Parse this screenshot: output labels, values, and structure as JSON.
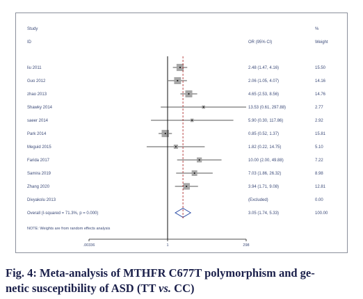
{
  "chart_data": {
    "type": "forest",
    "columns": {
      "study_header_line1": "Study",
      "study_header_line2": "ID",
      "estimate_header": "OR (95% CI)",
      "weight_header_line1": "%",
      "weight_header_line2": "Weight"
    },
    "studies": [
      {
        "id": "liu 2011",
        "or": 2.48,
        "lo": 1.47,
        "hi": 4.16,
        "ci_text": "2.48 (1.47, 4.16)",
        "weight": 15.5,
        "weight_text": "15.50"
      },
      {
        "id": "Guo 2012",
        "or": 2.06,
        "lo": 1.05,
        "hi": 4.07,
        "ci_text": "2.06 (1.05, 4.07)",
        "weight": 14.16,
        "weight_text": "14.16"
      },
      {
        "id": "zhao 2013",
        "or": 4.65,
        "lo": 2.53,
        "hi": 8.56,
        "ci_text": "4.65 (2.53, 8.56)",
        "weight": 14.76,
        "weight_text": "14.76"
      },
      {
        "id": "Shawky 2014",
        "or": 13.53,
        "lo": 0.61,
        "hi": 297.88,
        "ci_text": "13.53 (0.61, 297.88)",
        "weight": 2.77,
        "weight_text": "2.77"
      },
      {
        "id": "saeer 2014",
        "or": 5.9,
        "lo": 0.3,
        "hi": 117.86,
        "ci_text": "5.90 (0.30, 117.86)",
        "weight": 2.92,
        "weight_text": "2.92"
      },
      {
        "id": "Park 2014",
        "or": 0.85,
        "lo": 0.52,
        "hi": 1.37,
        "ci_text": "0.85 (0.52, 1.37)",
        "weight": 15.81,
        "weight_text": "15.81"
      },
      {
        "id": "Meguid 2015",
        "or": 1.82,
        "lo": 0.22,
        "hi": 14.75,
        "ci_text": "1.82 (0.22, 14.75)",
        "weight": 5.1,
        "weight_text": "5.10"
      },
      {
        "id": "Farida 2017",
        "or": 10.0,
        "lo": 2.0,
        "hi": 49.88,
        "ci_text": "10.00 (2.00, 49.88)",
        "weight": 7.22,
        "weight_text": "7.22"
      },
      {
        "id": "Samira 2019",
        "or": 7.03,
        "lo": 1.86,
        "hi": 26.32,
        "ci_text": "7.03 (1.86, 26.32)",
        "weight": 8.98,
        "weight_text": "8.98"
      },
      {
        "id": "Zhang 2020",
        "or": 3.94,
        "lo": 1.71,
        "hi": 9.08,
        "ci_text": "3.94 (1.71, 9.08)",
        "weight": 12.81,
        "weight_text": "12.81"
      },
      {
        "id": "Divyakolu 2013",
        "or": null,
        "lo": null,
        "hi": null,
        "ci_text": "(Excluded)",
        "weight": 0.0,
        "weight_text": "0.00"
      }
    ],
    "overall": {
      "label": "Overall (I-squared = 71.3%, p = 0.000)",
      "or": 3.05,
      "lo": 1.74,
      "hi": 5.33,
      "ci_text": "3.05 (1.74, 5.33)",
      "weight_text": "100.00"
    },
    "note": "NOTE: Weights are from random effects analysis",
    "x_axis": {
      "scale": "log",
      "ticks": [
        0.00336,
        1,
        298
      ],
      "tick_labels": [
        ".00336",
        "1",
        "298"
      ],
      "range": [
        0.00336,
        298
      ]
    },
    "null_line": 1,
    "colors": {
      "text": "#3b4a78",
      "ci_line": "#1c1c1c",
      "box_fill": "#a8a8a8",
      "overall_line": "#b03030",
      "diamond": "#2f4fa8",
      "panel_border": "#8a8f9b",
      "caption": "#1a1f4a"
    }
  },
  "caption": {
    "line1": "Fig. 4: Meta-analysis of MTHFR C677T polymorphism and ge-",
    "line2_pre": "netic susceptibility of ASD (TT ",
    "line2_italic": "vs.",
    "line2_post": " CC)"
  }
}
